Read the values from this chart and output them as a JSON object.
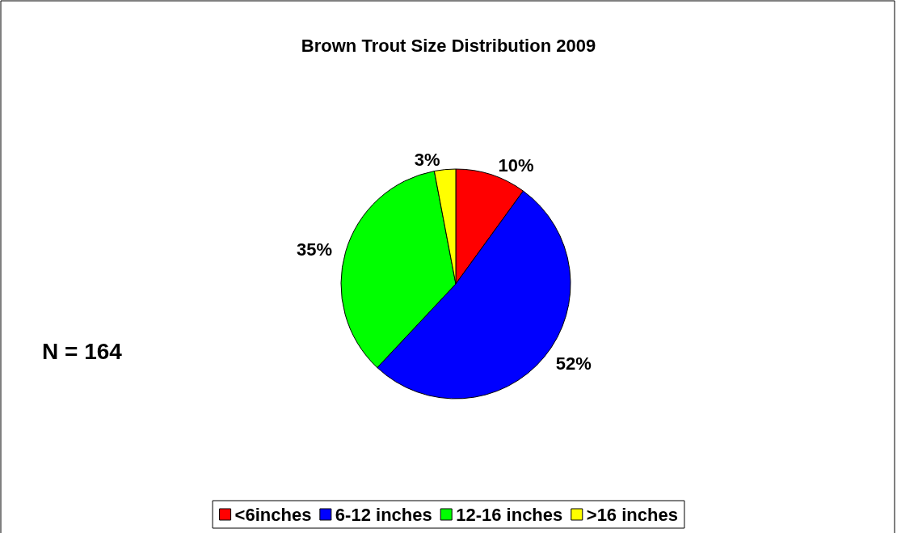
{
  "chart_data": {
    "type": "pie",
    "title": "Brown Trout Size Distribution 2009",
    "categories": [
      "<6inches",
      "6-12 inches",
      "12-16 inches",
      ">16 inches"
    ],
    "values": [
      10,
      52,
      35,
      3
    ],
    "colors": [
      "#ff0000",
      "#0000ff",
      "#00ff00",
      "#ffff00"
    ],
    "value_labels": [
      "10%",
      "52%",
      "35%",
      "3%"
    ],
    "legend": "bottom",
    "annotations": [
      "N = 164"
    ]
  }
}
